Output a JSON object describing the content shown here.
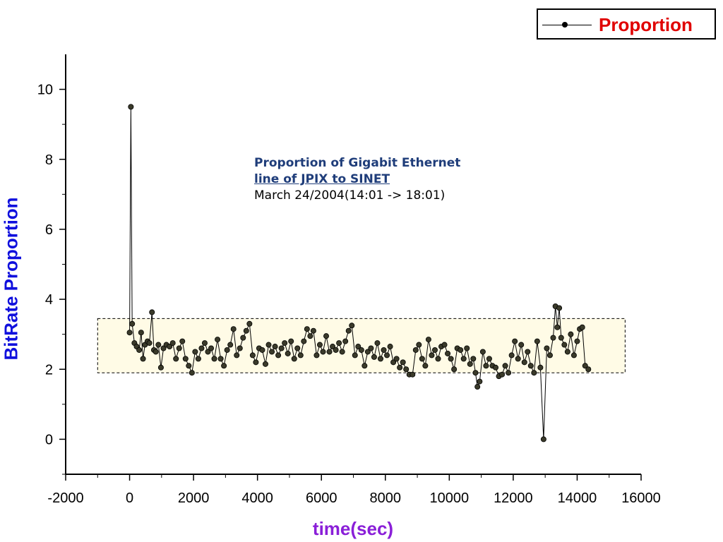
{
  "legend": {
    "label": "Proportion"
  },
  "annotation": {
    "title_line1": "Proportion of Gigabit Ethernet",
    "title_line2": "line of JPIX to SINET",
    "subtitle": "March 24/2004(14:01 -> 18:01)"
  },
  "colors": {
    "line": "#000000",
    "marker_fill": "#3a3a2a",
    "band_fill": "#fffbe6",
    "legend_text": "#e00000",
    "ylabel": "#1010dd",
    "xlabel": "#8a1fd8",
    "annotation_title": "#1f3d7a"
  },
  "chart_data": {
    "type": "line",
    "xlabel": "time(sec)",
    "ylabel": "BitRate Proportion",
    "xlim": [
      -2000,
      16000
    ],
    "ylim": [
      -1,
      11
    ],
    "xticks": [
      -2000,
      0,
      2000,
      4000,
      6000,
      8000,
      10000,
      12000,
      14000,
      16000
    ],
    "yticks": [
      0,
      2,
      4,
      6,
      8,
      10
    ],
    "highlight_band": {
      "x": [
        -1000,
        15500
      ],
      "y": [
        1.9,
        3.45
      ]
    },
    "series": [
      {
        "name": "Proportion",
        "marker": "circle",
        "points": [
          [
            0,
            3.05
          ],
          [
            40,
            9.5
          ],
          [
            80,
            3.3
          ],
          [
            150,
            2.75
          ],
          [
            220,
            2.65
          ],
          [
            300,
            2.55
          ],
          [
            360,
            3.05
          ],
          [
            420,
            2.3
          ],
          [
            480,
            2.7
          ],
          [
            560,
            2.8
          ],
          [
            620,
            2.75
          ],
          [
            700,
            3.63
          ],
          [
            760,
            2.55
          ],
          [
            820,
            2.5
          ],
          [
            900,
            2.7
          ],
          [
            980,
            2.05
          ],
          [
            1060,
            2.6
          ],
          [
            1150,
            2.7
          ],
          [
            1250,
            2.65
          ],
          [
            1350,
            2.75
          ],
          [
            1450,
            2.3
          ],
          [
            1550,
            2.6
          ],
          [
            1650,
            2.8
          ],
          [
            1750,
            2.3
          ],
          [
            1850,
            2.1
          ],
          [
            1950,
            1.9
          ],
          [
            2050,
            2.5
          ],
          [
            2150,
            2.3
          ],
          [
            2250,
            2.6
          ],
          [
            2350,
            2.75
          ],
          [
            2450,
            2.5
          ],
          [
            2550,
            2.6
          ],
          [
            2650,
            2.3
          ],
          [
            2750,
            2.85
          ],
          [
            2850,
            2.3
          ],
          [
            2950,
            2.1
          ],
          [
            3050,
            2.55
          ],
          [
            3150,
            2.7
          ],
          [
            3250,
            3.15
          ],
          [
            3350,
            2.4
          ],
          [
            3450,
            2.6
          ],
          [
            3550,
            2.9
          ],
          [
            3650,
            3.1
          ],
          [
            3750,
            3.3
          ],
          [
            3850,
            2.4
          ],
          [
            3950,
            2.2
          ],
          [
            4050,
            2.6
          ],
          [
            4150,
            2.55
          ],
          [
            4250,
            2.15
          ],
          [
            4350,
            2.7
          ],
          [
            4450,
            2.5
          ],
          [
            4550,
            2.65
          ],
          [
            4650,
            2.4
          ],
          [
            4750,
            2.6
          ],
          [
            4850,
            2.75
          ],
          [
            4950,
            2.45
          ],
          [
            5050,
            2.8
          ],
          [
            5150,
            2.3
          ],
          [
            5250,
            2.6
          ],
          [
            5350,
            2.4
          ],
          [
            5450,
            2.8
          ],
          [
            5550,
            3.15
          ],
          [
            5650,
            2.95
          ],
          [
            5750,
            3.1
          ],
          [
            5850,
            2.4
          ],
          [
            5950,
            2.7
          ],
          [
            6050,
            2.5
          ],
          [
            6150,
            2.95
          ],
          [
            6250,
            2.5
          ],
          [
            6350,
            2.65
          ],
          [
            6450,
            2.55
          ],
          [
            6550,
            2.75
          ],
          [
            6650,
            2.5
          ],
          [
            6750,
            2.8
          ],
          [
            6850,
            3.1
          ],
          [
            6950,
            3.25
          ],
          [
            7050,
            2.4
          ],
          [
            7150,
            2.65
          ],
          [
            7250,
            2.55
          ],
          [
            7350,
            2.1
          ],
          [
            7450,
            2.5
          ],
          [
            7550,
            2.6
          ],
          [
            7650,
            2.35
          ],
          [
            7750,
            2.75
          ],
          [
            7850,
            2.3
          ],
          [
            7950,
            2.55
          ],
          [
            8050,
            2.4
          ],
          [
            8150,
            2.65
          ],
          [
            8250,
            2.2
          ],
          [
            8350,
            2.3
          ],
          [
            8450,
            2.05
          ],
          [
            8550,
            2.2
          ],
          [
            8650,
            2.0
          ],
          [
            8750,
            1.85
          ],
          [
            8850,
            1.85
          ],
          [
            8950,
            2.55
          ],
          [
            9050,
            2.7
          ],
          [
            9150,
            2.3
          ],
          [
            9250,
            2.1
          ],
          [
            9350,
            2.85
          ],
          [
            9450,
            2.4
          ],
          [
            9550,
            2.55
          ],
          [
            9650,
            2.3
          ],
          [
            9750,
            2.65
          ],
          [
            9850,
            2.7
          ],
          [
            9950,
            2.45
          ],
          [
            10050,
            2.3
          ],
          [
            10150,
            2.0
          ],
          [
            10250,
            2.6
          ],
          [
            10350,
            2.55
          ],
          [
            10450,
            2.3
          ],
          [
            10550,
            2.6
          ],
          [
            10650,
            2.15
          ],
          [
            10750,
            2.3
          ],
          [
            10820,
            1.9
          ],
          [
            10880,
            1.5
          ],
          [
            10950,
            1.65
          ],
          [
            11050,
            2.5
          ],
          [
            11150,
            2.1
          ],
          [
            11250,
            2.3
          ],
          [
            11350,
            2.1
          ],
          [
            11450,
            2.05
          ],
          [
            11550,
            1.8
          ],
          [
            11650,
            1.85
          ],
          [
            11750,
            2.1
          ],
          [
            11850,
            1.9
          ],
          [
            11950,
            2.4
          ],
          [
            12050,
            2.8
          ],
          [
            12150,
            2.3
          ],
          [
            12250,
            2.7
          ],
          [
            12350,
            2.2
          ],
          [
            12450,
            2.5
          ],
          [
            12550,
            2.1
          ],
          [
            12650,
            1.9
          ],
          [
            12750,
            2.8
          ],
          [
            12850,
            2.05
          ],
          [
            12950,
            0.0
          ],
          [
            13050,
            2.6
          ],
          [
            13150,
            2.4
          ],
          [
            13250,
            2.9
          ],
          [
            13320,
            3.8
          ],
          [
            13380,
            3.2
          ],
          [
            13440,
            3.75
          ],
          [
            13500,
            2.9
          ],
          [
            13600,
            2.7
          ],
          [
            13700,
            2.5
          ],
          [
            13800,
            3.0
          ],
          [
            13900,
            2.4
          ],
          [
            14000,
            2.8
          ],
          [
            14080,
            3.15
          ],
          [
            14160,
            3.2
          ],
          [
            14250,
            2.1
          ],
          [
            14350,
            2.0
          ]
        ]
      }
    ]
  }
}
